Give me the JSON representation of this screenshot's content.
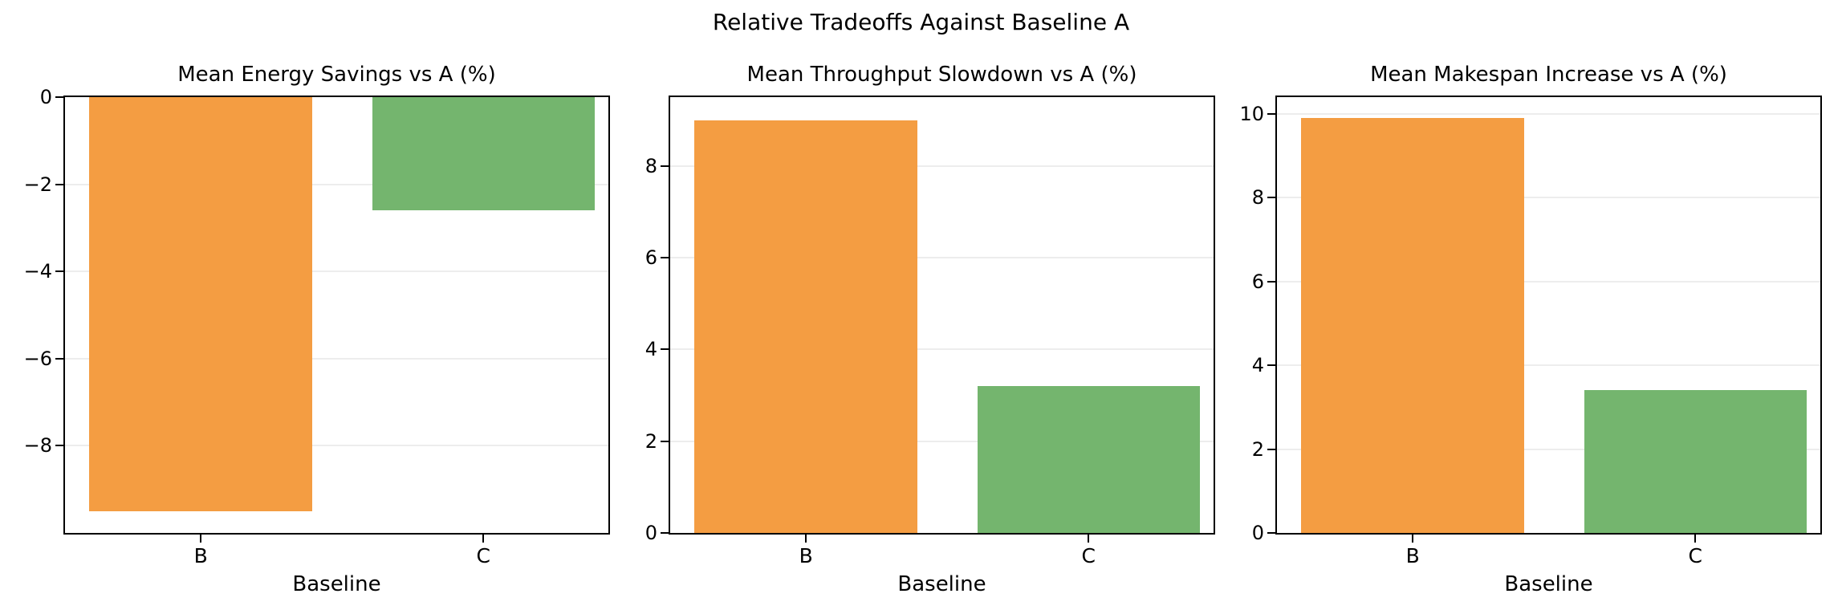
{
  "suptitle": "Relative Tradeoffs Against Baseline A",
  "colors": {
    "bar_b_orange": "#f49d42",
    "bar_c_green": "#74b56e",
    "grid": "#ededed",
    "spine": "#000000",
    "background": "#ffffff"
  },
  "chart_data": [
    {
      "type": "bar",
      "title": "Mean Energy Savings vs A (%)",
      "xlabel": "Baseline",
      "ylabel": "",
      "categories": [
        "B",
        "C"
      ],
      "values": [
        -9.5,
        -2.6
      ],
      "bar_colors": [
        "#f49d42",
        "#74b56e"
      ],
      "ylim": [
        -10,
        0
      ],
      "yticks": [
        0,
        -2,
        -4,
        -6,
        -8
      ],
      "grid": true,
      "legend": "none"
    },
    {
      "type": "bar",
      "title": "Mean Throughput Slowdown vs A (%)",
      "xlabel": "Baseline",
      "ylabel": "",
      "categories": [
        "B",
        "C"
      ],
      "values": [
        9.0,
        3.2
      ],
      "bar_colors": [
        "#f49d42",
        "#74b56e"
      ],
      "ylim": [
        0,
        9.5
      ],
      "yticks": [
        0,
        2,
        4,
        6,
        8
      ],
      "grid": true,
      "legend": "none"
    },
    {
      "type": "bar",
      "title": "Mean Makespan Increase vs A (%)",
      "xlabel": "Baseline",
      "ylabel": "",
      "categories": [
        "B",
        "C"
      ],
      "values": [
        9.9,
        3.4
      ],
      "bar_colors": [
        "#f49d42",
        "#74b56e"
      ],
      "ylim": [
        0,
        10.4
      ],
      "yticks": [
        0,
        2,
        4,
        6,
        8,
        10
      ],
      "grid": true,
      "legend": "none"
    }
  ]
}
